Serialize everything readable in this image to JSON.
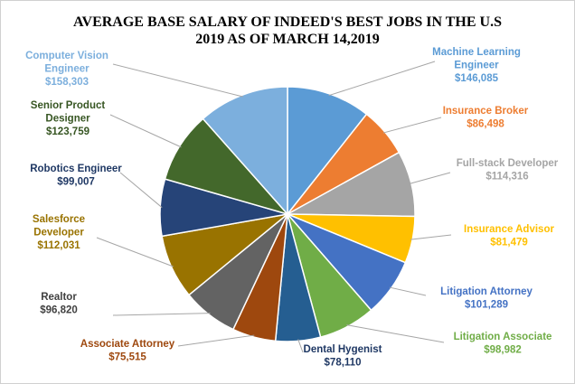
{
  "chart_data": {
    "type": "pie",
    "title_lines": [
      "AVERAGE BASE SALARY OF INDEED'S BEST JOBS IN THE U.S",
      "2019 AS OF MARCH 14,2019"
    ],
    "slices": [
      {
        "name": "Machine Learning Engineer",
        "name_lines": [
          "Machine Learning",
          "Engineer"
        ],
        "value": 146085,
        "value_label": "$146,085",
        "color": "#5b9bd5",
        "label_color": "#5b9bd5"
      },
      {
        "name": "Insurance Broker",
        "name_lines": [
          "Insurance Broker"
        ],
        "value": 86498,
        "value_label": "$86,498",
        "color": "#ed7d31",
        "label_color": "#ed7d31"
      },
      {
        "name": "Full-stack Developer",
        "name_lines": [
          "Full-stack Developer"
        ],
        "value": 114316,
        "value_label": "$114,316",
        "color": "#a5a5a5",
        "label_color": "#a5a5a5"
      },
      {
        "name": "Insurance Advisor",
        "name_lines": [
          "Insurance Advisor"
        ],
        "value": 81479,
        "value_label": "$81,479",
        "color": "#ffc000",
        "label_color": "#ffc000"
      },
      {
        "name": "Litigation Attorney",
        "name_lines": [
          "Litigation Attorney"
        ],
        "value": 101289,
        "value_label": "$101,289",
        "color": "#4472c4",
        "label_color": "#4472c4"
      },
      {
        "name": "Litigation Associate",
        "name_lines": [
          "Litigation Associate"
        ],
        "value": 98982,
        "value_label": "$98,982",
        "color": "#70ad47",
        "label_color": "#70ad47"
      },
      {
        "name": "Dental Hygenist",
        "name_lines": [
          "Dental Hygenist"
        ],
        "value": 78110,
        "value_label": "$78,110",
        "color": "#255e91",
        "label_color": "#1f3864"
      },
      {
        "name": "Associate Attorney",
        "name_lines": [
          "Associate Attorney"
        ],
        "value": 75515,
        "value_label": "$75,515",
        "color": "#9e480e",
        "label_color": "#9e480e"
      },
      {
        "name": "Realtor",
        "name_lines": [
          "Realtor"
        ],
        "value": 96820,
        "value_label": "$96,820",
        "color": "#636363",
        "label_color": "#404040"
      },
      {
        "name": "Salesforce Developer",
        "name_lines": [
          "Salesforce",
          "Developer"
        ],
        "value": 112031,
        "value_label": "$112,031",
        "color": "#997300",
        "label_color": "#997300"
      },
      {
        "name": "Robotics Engineer",
        "name_lines": [
          "Robotics Engineer"
        ],
        "value": 99007,
        "value_label": "$99,007",
        "color": "#264478",
        "label_color": "#1f3864"
      },
      {
        "name": "Senior Product Designer",
        "name_lines": [
          "Senior Product",
          "Designer"
        ],
        "value": 123759,
        "value_label": "$123,759",
        "color": "#43682b",
        "label_color": "#375623"
      },
      {
        "name": "Computer Vision Engineer",
        "name_lines": [
          "Computer Vision",
          "Engineer"
        ],
        "value": 158303,
        "value_label": "$158,303",
        "color": "#7cafdd",
        "label_color": "#7cafdd"
      }
    ],
    "start_angle": "12 o'clock",
    "direction": "clockwise",
    "leader_lines": true,
    "legend": "none"
  }
}
